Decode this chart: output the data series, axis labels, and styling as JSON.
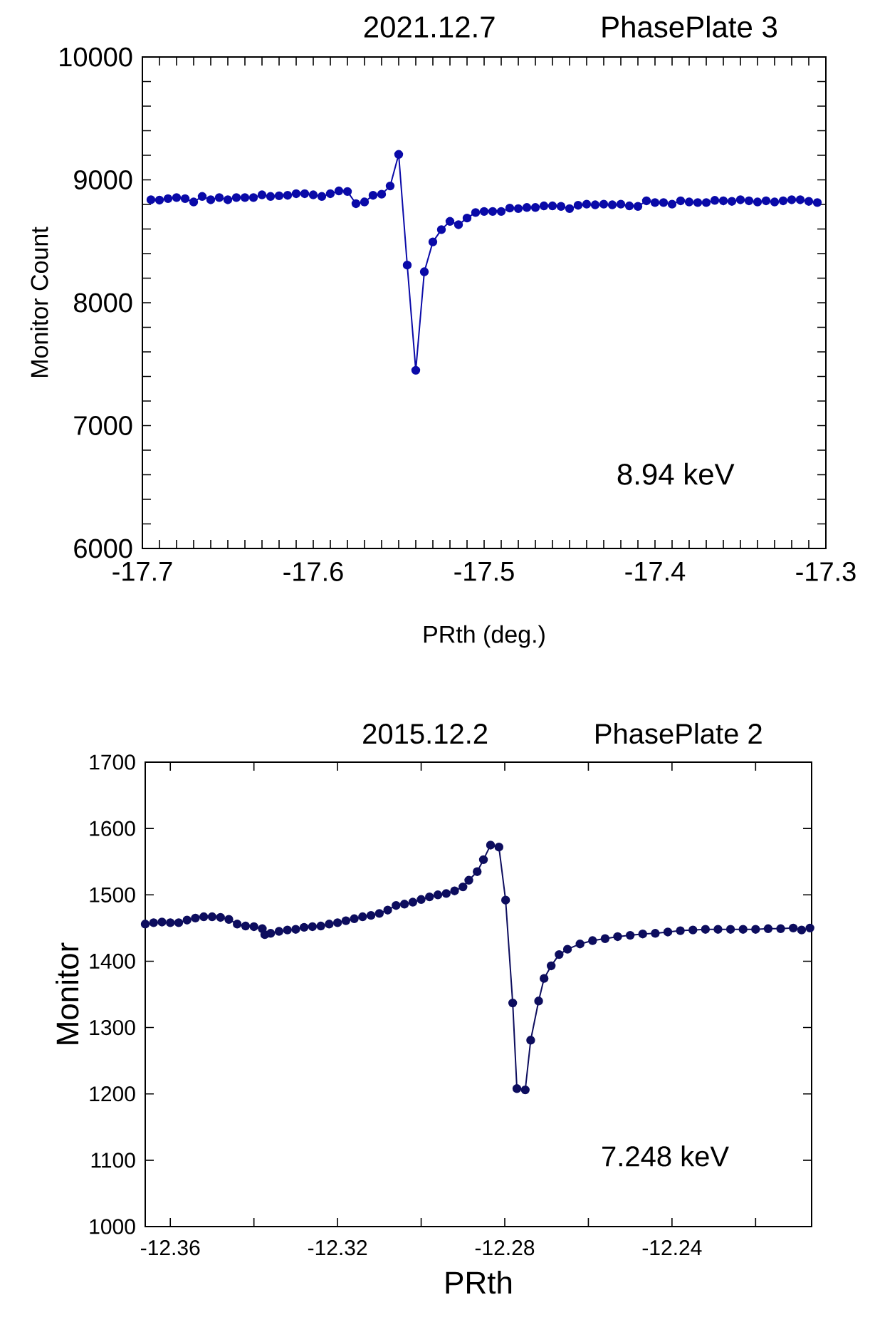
{
  "chart_data": [
    {
      "type": "line",
      "title": "2021.12.7",
      "subtitle": "PhasePlate 3",
      "xlabel": "PRth  (deg.)",
      "ylabel": "Monitor Count",
      "annotations": [
        "8.94 keV"
      ],
      "marker": "circle",
      "line_style": "solid",
      "grid": false,
      "xlim": [
        -17.7,
        -17.3
      ],
      "ylim": [
        6000,
        10000
      ],
      "xticks": [
        -17.7,
        {
          "value": -17.69,
          "label": null
        },
        {
          "value": -17.68,
          "label": null
        },
        {
          "value": -17.67,
          "label": null
        },
        {
          "value": -17.66,
          "label": null
        },
        {
          "value": -17.65,
          "label": null
        },
        {
          "value": -17.64,
          "label": null
        },
        {
          "value": -17.63,
          "label": null
        },
        {
          "value": -17.62,
          "label": null
        },
        {
          "value": -17.61,
          "label": null
        },
        -17.6,
        {
          "value": -17.59,
          "label": null
        },
        {
          "value": -17.58,
          "label": null
        },
        {
          "value": -17.57,
          "label": null
        },
        {
          "value": -17.56,
          "label": null
        },
        {
          "value": -17.55,
          "label": null
        },
        {
          "value": -17.54,
          "label": null
        },
        {
          "value": -17.53,
          "label": null
        },
        {
          "value": -17.52,
          "label": null
        },
        {
          "value": -17.51,
          "label": null
        },
        -17.5,
        {
          "value": -17.49,
          "label": null
        },
        {
          "value": -17.48,
          "label": null
        },
        {
          "value": -17.47,
          "label": null
        },
        {
          "value": -17.46,
          "label": null
        },
        {
          "value": -17.45,
          "label": null
        },
        {
          "value": -17.44,
          "label": null
        },
        {
          "value": -17.43,
          "label": null
        },
        {
          "value": -17.42,
          "label": null
        },
        {
          "value": -17.41,
          "label": null
        },
        -17.4,
        {
          "value": -17.39,
          "label": null
        },
        {
          "value": -17.38,
          "label": null
        },
        {
          "value": -17.37,
          "label": null
        },
        {
          "value": -17.36,
          "label": null
        },
        {
          "value": -17.35,
          "label": null
        },
        {
          "value": -17.34,
          "label": null
        },
        {
          "value": -17.33,
          "label": null
        },
        {
          "value": -17.32,
          "label": null
        },
        {
          "value": -17.31,
          "label": null
        },
        -17.3
      ],
      "yticks": [
        6000,
        {
          "value": 6200,
          "label": null
        },
        {
          "value": 6400,
          "label": null
        },
        {
          "value": 6600,
          "label": null
        },
        {
          "value": 6800,
          "label": null
        },
        7000,
        {
          "value": 7200,
          "label": null
        },
        {
          "value": 7400,
          "label": null
        },
        {
          "value": 7600,
          "label": null
        },
        {
          "value": 7800,
          "label": null
        },
        8000,
        {
          "value": 8200,
          "label": null
        },
        {
          "value": 8400,
          "label": null
        },
        {
          "value": 8600,
          "label": null
        },
        {
          "value": 8800,
          "label": null
        },
        9000,
        {
          "value": 9200,
          "label": null
        },
        {
          "value": 9400,
          "label": null
        },
        {
          "value": 9600,
          "label": null
        },
        {
          "value": 9800,
          "label": null
        },
        10000
      ],
      "series": [
        {
          "color": "#0a0aa8",
          "x": [
            -17.695,
            -17.69,
            -17.685,
            -17.68,
            -17.675,
            -17.67,
            -17.665,
            -17.66,
            -17.655,
            -17.65,
            -17.645,
            -17.64,
            -17.635,
            -17.63,
            -17.625,
            -17.62,
            -17.615,
            -17.61,
            -17.605,
            -17.6,
            -17.595,
            -17.59,
            -17.585,
            -17.58,
            -17.575,
            -17.57,
            -17.565,
            -17.56,
            -17.555,
            -17.55,
            -17.545,
            -17.54,
            -17.535,
            -17.53,
            -17.525,
            -17.52,
            -17.515,
            -17.51,
            -17.505,
            -17.5,
            -17.495,
            -17.49,
            -17.485,
            -17.48,
            -17.475,
            -17.47,
            -17.465,
            -17.46,
            -17.455,
            -17.45,
            -17.445,
            -17.44,
            -17.435,
            -17.43,
            -17.425,
            -17.42,
            -17.415,
            -17.41,
            -17.405,
            -17.4,
            -17.395,
            -17.39,
            -17.385,
            -17.38,
            -17.375,
            -17.37,
            -17.365,
            -17.36,
            -17.355,
            -17.35,
            -17.345,
            -17.34,
            -17.335,
            -17.33,
            -17.325,
            -17.32,
            -17.315,
            -17.31,
            -17.305
          ],
          "values": [
            8838,
            8835,
            8847,
            8856,
            8847,
            8820,
            8865,
            8838,
            8856,
            8838,
            8856,
            8856,
            8856,
            8878,
            8865,
            8870,
            8874,
            8887,
            8887,
            8878,
            8865,
            8887,
            8910,
            8905,
            8806,
            8820,
            8874,
            8883,
            8950,
            9207,
            8306,
            7450,
            8252,
            8495,
            8595,
            8662,
            8635,
            8689,
            8734,
            8743,
            8743,
            8743,
            8770,
            8766,
            8775,
            8775,
            8788,
            8788,
            8784,
            8766,
            8793,
            8802,
            8797,
            8802,
            8797,
            8802,
            8788,
            8784,
            8829,
            8815,
            8815,
            8802,
            8829,
            8820,
            8815,
            8815,
            8833,
            8829,
            8825,
            8838,
            8829,
            8820,
            8829,
            8820,
            8829,
            8838,
            8838,
            8825,
            8815
          ]
        }
      ]
    },
    {
      "type": "line",
      "title": "2015.12.2",
      "subtitle": "PhasePlate 2",
      "xlabel": "PRth",
      "ylabel": "Monitor",
      "annotations": [
        "7.248 keV"
      ],
      "marker": "circle",
      "line_style": "solid",
      "grid": false,
      "xlim": [
        -12.366,
        -12.2066
      ],
      "ylim": [
        1000,
        1700
      ],
      "xticks": [
        -12.36,
        {
          "value": -12.34,
          "label": null
        },
        -12.32,
        {
          "value": -12.3,
          "label": null
        },
        -12.28,
        {
          "value": -12.26,
          "label": null
        },
        -12.24,
        {
          "value": -12.22,
          "label": null
        }
      ],
      "yticks": [
        1000,
        1100,
        1200,
        1300,
        1400,
        1500,
        1600,
        1700
      ],
      "series": [
        {
          "color": "#0d0d5e",
          "x": [
            -12.366,
            -12.364,
            -12.362,
            -12.36,
            -12.358,
            -12.356,
            -12.354,
            -12.352,
            -12.35,
            -12.348,
            -12.346,
            -12.344,
            -12.342,
            -12.34,
            -12.338,
            -12.3374,
            -12.336,
            -12.334,
            -12.332,
            -12.33,
            -12.328,
            -12.326,
            -12.324,
            -12.322,
            -12.32,
            -12.318,
            -12.316,
            -12.314,
            -12.312,
            -12.31,
            -12.308,
            -12.306,
            -12.304,
            -12.302,
            -12.3,
            -12.298,
            -12.296,
            -12.294,
            -12.292,
            -12.29,
            -12.2886,
            -12.2866,
            -12.2851,
            -12.2834,
            -12.2814,
            -12.2798,
            -12.2781,
            -12.2771,
            -12.2751,
            -12.2738,
            -12.2719,
            -12.2706,
            -12.2689,
            -12.267,
            -12.265,
            -12.262,
            -12.259,
            -12.256,
            -12.253,
            -12.25,
            -12.247,
            -12.244,
            -12.241,
            -12.238,
            -12.235,
            -12.232,
            -12.229,
            -12.226,
            -12.223,
            -12.22,
            -12.217,
            -12.214,
            -12.211,
            -12.209,
            -12.207
          ],
          "values": [
            1456,
            1458,
            1459,
            1458,
            1458,
            1462,
            1465,
            1467,
            1467,
            1466,
            1463,
            1456,
            1453,
            1452,
            1449,
            1440,
            1442,
            1445,
            1447,
            1448,
            1451,
            1452,
            1453,
            1456,
            1458,
            1461,
            1464,
            1467,
            1469,
            1472,
            1477,
            1484,
            1486,
            1489,
            1493,
            1497,
            1500,
            1502,
            1506,
            1512,
            1522,
            1535,
            1553,
            1575,
            1572,
            1492,
            1337,
            1208,
            1206,
            1281,
            1340,
            1374,
            1393,
            1410,
            1418,
            1426,
            1431,
            1434,
            1437,
            1439,
            1441,
            1442,
            1444,
            1446,
            1447,
            1448,
            1448,
            1448,
            1448,
            1448,
            1449,
            1449,
            1450,
            1447,
            1450
          ]
        }
      ]
    }
  ]
}
